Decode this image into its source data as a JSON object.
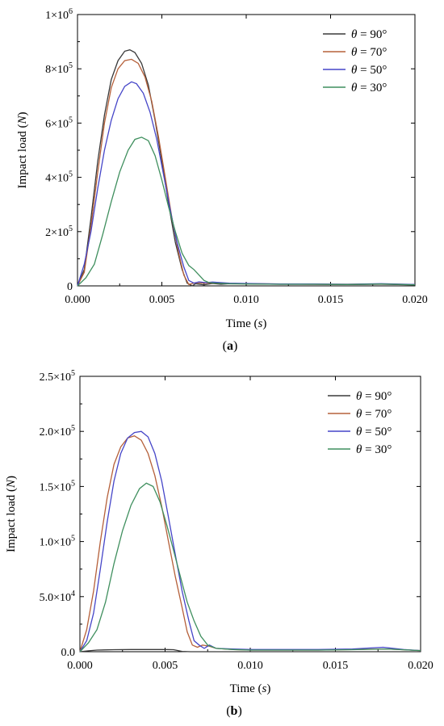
{
  "chart_data": [
    {
      "type": "line",
      "panel_label": "(a)",
      "xlabel": "Time (s)",
      "ylabel": "Impact load (N)",
      "xlim": [
        0,
        0.02
      ],
      "ylim": [
        0,
        1000000
      ],
      "x_ticks": [
        "0.000",
        "0.005",
        "0.010",
        "0.015",
        "0.020"
      ],
      "x_tick_values": [
        0,
        0.005,
        0.01,
        0.015,
        0.02
      ],
      "y_ticks": [
        {
          "value": 0,
          "mantissa": "0",
          "exp": ""
        },
        {
          "value": 200000,
          "mantissa": "2×10",
          "exp": "5"
        },
        {
          "value": 400000,
          "mantissa": "4×10",
          "exp": "5"
        },
        {
          "value": 600000,
          "mantissa": "6×10",
          "exp": "5"
        },
        {
          "value": 800000,
          "mantissa": "8×10",
          "exp": "5"
        },
        {
          "value": 1000000,
          "mantissa": "1×10",
          "exp": "6"
        }
      ],
      "legend_position": "top-right",
      "series": [
        {
          "name": "θ = 90°",
          "color": "#3a3a3a",
          "points": [
            [
              0,
              0
            ],
            [
              0.0004,
              60000
            ],
            [
              0.0008,
              250000
            ],
            [
              0.0012,
              460000
            ],
            [
              0.0016,
              630000
            ],
            [
              0.002,
              760000
            ],
            [
              0.0024,
              830000
            ],
            [
              0.0028,
              865000
            ],
            [
              0.0031,
              870000
            ],
            [
              0.0034,
              860000
            ],
            [
              0.0038,
              820000
            ],
            [
              0.0042,
              740000
            ],
            [
              0.0046,
              610000
            ],
            [
              0.005,
              460000
            ],
            [
              0.0054,
              300000
            ],
            [
              0.0058,
              160000
            ],
            [
              0.0062,
              60000
            ],
            [
              0.0065,
              10000
            ],
            [
              0.0068,
              0
            ],
            [
              0.007,
              8000
            ],
            [
              0.0075,
              4000
            ],
            [
              0.008,
              9000
            ],
            [
              0.0085,
              6000
            ],
            [
              0.009,
              8000
            ],
            [
              0.01,
              7000
            ],
            [
              0.012,
              6000
            ],
            [
              0.014,
              6000
            ],
            [
              0.016,
              5000
            ],
            [
              0.018,
              6000
            ],
            [
              0.019,
              5000
            ],
            [
              0.02,
              4000
            ]
          ]
        },
        {
          "name": "θ = 70°",
          "color": "#b5603a",
          "points": [
            [
              0,
              0
            ],
            [
              0.0004,
              50000
            ],
            [
              0.0008,
              220000
            ],
            [
              0.0012,
              420000
            ],
            [
              0.0016,
              600000
            ],
            [
              0.002,
              730000
            ],
            [
              0.0024,
              800000
            ],
            [
              0.0028,
              830000
            ],
            [
              0.0032,
              835000
            ],
            [
              0.0036,
              820000
            ],
            [
              0.004,
              770000
            ],
            [
              0.0044,
              680000
            ],
            [
              0.0048,
              550000
            ],
            [
              0.0052,
              400000
            ],
            [
              0.0056,
              250000
            ],
            [
              0.006,
              120000
            ],
            [
              0.0063,
              40000
            ],
            [
              0.0066,
              5000
            ],
            [
              0.007,
              12000
            ],
            [
              0.0075,
              10000
            ],
            [
              0.008,
              11000
            ],
            [
              0.009,
              9000
            ],
            [
              0.01,
              8000
            ],
            [
              0.012,
              7000
            ],
            [
              0.014,
              6000
            ],
            [
              0.016,
              6000
            ],
            [
              0.018,
              7000
            ],
            [
              0.02,
              5000
            ]
          ]
        },
        {
          "name": "θ = 50°",
          "color": "#4545c8",
          "points": [
            [
              0,
              0
            ],
            [
              0.0004,
              80000
            ],
            [
              0.0008,
              200000
            ],
            [
              0.0012,
              360000
            ],
            [
              0.0016,
              500000
            ],
            [
              0.002,
              610000
            ],
            [
              0.0024,
              690000
            ],
            [
              0.0028,
              735000
            ],
            [
              0.0032,
              752000
            ],
            [
              0.0035,
              745000
            ],
            [
              0.0039,
              710000
            ],
            [
              0.0043,
              640000
            ],
            [
              0.0047,
              540000
            ],
            [
              0.0051,
              410000
            ],
            [
              0.0055,
              280000
            ],
            [
              0.0059,
              160000
            ],
            [
              0.0063,
              70000
            ],
            [
              0.0066,
              20000
            ],
            [
              0.0069,
              10000
            ],
            [
              0.0072,
              15000
            ],
            [
              0.0076,
              12000
            ],
            [
              0.008,
              14000
            ],
            [
              0.009,
              10000
            ],
            [
              0.01,
              9000
            ],
            [
              0.012,
              7000
            ],
            [
              0.014,
              7000
            ],
            [
              0.016,
              6000
            ],
            [
              0.018,
              8000
            ],
            [
              0.02,
              5000
            ]
          ]
        },
        {
          "name": "θ = 30°",
          "color": "#3f8f5e",
          "points": [
            [
              0,
              0
            ],
            [
              0.0005,
              30000
            ],
            [
              0.001,
              80000
            ],
            [
              0.0015,
              190000
            ],
            [
              0.002,
              310000
            ],
            [
              0.0025,
              420000
            ],
            [
              0.003,
              500000
            ],
            [
              0.0034,
              540000
            ],
            [
              0.0038,
              548000
            ],
            [
              0.0042,
              535000
            ],
            [
              0.0046,
              480000
            ],
            [
              0.005,
              390000
            ],
            [
              0.0054,
              290000
            ],
            [
              0.0058,
              200000
            ],
            [
              0.0062,
              120000
            ],
            [
              0.0066,
              75000
            ],
            [
              0.0069,
              60000
            ],
            [
              0.0072,
              40000
            ],
            [
              0.0075,
              20000
            ],
            [
              0.0078,
              12000
            ],
            [
              0.0082,
              10000
            ],
            [
              0.009,
              8000
            ],
            [
              0.01,
              7000
            ],
            [
              0.012,
              6000
            ],
            [
              0.014,
              6000
            ],
            [
              0.016,
              5000
            ],
            [
              0.018,
              7000
            ],
            [
              0.02,
              4000
            ]
          ]
        }
      ]
    },
    {
      "type": "line",
      "panel_label": "(b)",
      "xlabel": "Time (s)",
      "ylabel": "Impact load (N)",
      "xlim": [
        0,
        0.02
      ],
      "ylim": [
        0,
        250000
      ],
      "x_ticks": [
        "0.000",
        "0.005",
        "0.010",
        "0.015",
        "0.020"
      ],
      "x_tick_values": [
        0,
        0.005,
        0.01,
        0.015,
        0.02
      ],
      "y_ticks": [
        {
          "value": 0,
          "mantissa": "0.0",
          "exp": ""
        },
        {
          "value": 50000,
          "mantissa": "5.0×10",
          "exp": "4"
        },
        {
          "value": 100000,
          "mantissa": "1.0×10",
          "exp": "5"
        },
        {
          "value": 150000,
          "mantissa": "1.5×10",
          "exp": "5"
        },
        {
          "value": 200000,
          "mantissa": "2.0×10",
          "exp": "5"
        },
        {
          "value": 250000,
          "mantissa": "2.5×10",
          "exp": "5"
        }
      ],
      "legend_position": "top-right",
      "series": [
        {
          "name": "θ = 90°",
          "color": "#3a3a3a",
          "points": [
            [
              0,
              0
            ],
            [
              0.0005,
              800
            ],
            [
              0.001,
              1500
            ],
            [
              0.002,
              1800
            ],
            [
              0.003,
              2000
            ],
            [
              0.004,
              2000
            ],
            [
              0.005,
              2000
            ],
            [
              0.0055,
              1800
            ],
            [
              0.006,
              300
            ],
            [
              0.0065,
              0
            ],
            [
              0.008,
              0
            ],
            [
              0.012,
              0
            ],
            [
              0.016,
              0
            ],
            [
              0.02,
              0
            ]
          ]
        },
        {
          "name": "θ = 70°",
          "color": "#b5603a",
          "points": [
            [
              0,
              0
            ],
            [
              0.0004,
              20000
            ],
            [
              0.0008,
              55000
            ],
            [
              0.0012,
              100000
            ],
            [
              0.0016,
              140000
            ],
            [
              0.002,
              170000
            ],
            [
              0.0024,
              186000
            ],
            [
              0.0028,
              194000
            ],
            [
              0.0032,
              196000
            ],
            [
              0.0036,
              192000
            ],
            [
              0.004,
              180000
            ],
            [
              0.0044,
              160000
            ],
            [
              0.0048,
              132000
            ],
            [
              0.0052,
              100000
            ],
            [
              0.0056,
              68000
            ],
            [
              0.006,
              40000
            ],
            [
              0.0063,
              18000
            ],
            [
              0.0066,
              6000
            ],
            [
              0.0069,
              4000
            ],
            [
              0.0072,
              6000
            ],
            [
              0.0076,
              5000
            ],
            [
              0.008,
              3000
            ],
            [
              0.009,
              2000
            ],
            [
              0.01,
              1500
            ],
            [
              0.012,
              1500
            ],
            [
              0.014,
              1500
            ],
            [
              0.016,
              2000
            ],
            [
              0.018,
              2500
            ],
            [
              0.02,
              1000
            ]
          ]
        },
        {
          "name": "θ = 50°",
          "color": "#4545c8",
          "points": [
            [
              0,
              0
            ],
            [
              0.0004,
              10000
            ],
            [
              0.0008,
              35000
            ],
            [
              0.0012,
              75000
            ],
            [
              0.0016,
              118000
            ],
            [
              0.002,
              155000
            ],
            [
              0.0024,
              180000
            ],
            [
              0.0028,
              194000
            ],
            [
              0.0032,
              199000
            ],
            [
              0.0036,
              200000
            ],
            [
              0.004,
              195000
            ],
            [
              0.0044,
              180000
            ],
            [
              0.0048,
              155000
            ],
            [
              0.0052,
              122000
            ],
            [
              0.0056,
              88000
            ],
            [
              0.006,
              55000
            ],
            [
              0.0064,
              28000
            ],
            [
              0.0067,
              10000
            ],
            [
              0.007,
              6000
            ],
            [
              0.0073,
              3000
            ],
            [
              0.0076,
              6000
            ],
            [
              0.008,
              3000
            ],
            [
              0.009,
              2500
            ],
            [
              0.01,
              2000
            ],
            [
              0.012,
              2000
            ],
            [
              0.014,
              2000
            ],
            [
              0.016,
              2500
            ],
            [
              0.0178,
              4000
            ],
            [
              0.019,
              2000
            ],
            [
              0.02,
              1000
            ]
          ]
        },
        {
          "name": "θ = 30°",
          "color": "#3f8f5e",
          "points": [
            [
              0,
              0
            ],
            [
              0.0005,
              8000
            ],
            [
              0.001,
              20000
            ],
            [
              0.0015,
              45000
            ],
            [
              0.002,
              80000
            ],
            [
              0.0025,
              110000
            ],
            [
              0.003,
              133000
            ],
            [
              0.0035,
              148000
            ],
            [
              0.0039,
              153000
            ],
            [
              0.0043,
              150000
            ],
            [
              0.0047,
              136000
            ],
            [
              0.0051,
              115000
            ],
            [
              0.0055,
              92000
            ],
            [
              0.0059,
              68000
            ],
            [
              0.0063,
              45000
            ],
            [
              0.0067,
              28000
            ],
            [
              0.0071,
              14000
            ],
            [
              0.0075,
              6000
            ],
            [
              0.008,
              3000
            ],
            [
              0.009,
              2000
            ],
            [
              0.01,
              1500
            ],
            [
              0.012,
              1500
            ],
            [
              0.014,
              1500
            ],
            [
              0.016,
              1800
            ],
            [
              0.018,
              2500
            ],
            [
              0.02,
              1000
            ]
          ]
        }
      ]
    }
  ]
}
